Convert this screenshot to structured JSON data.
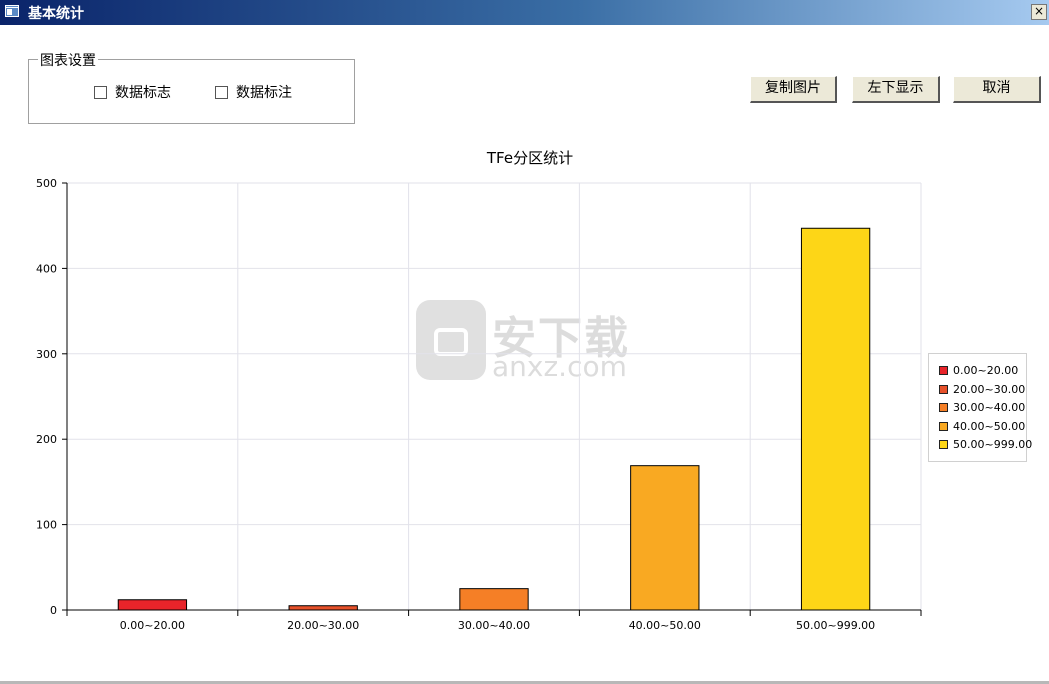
{
  "window": {
    "title": "基本统计",
    "close_label": "×"
  },
  "settings": {
    "group_title": "图表设置",
    "checkboxes": [
      {
        "label": "数据标志",
        "checked": false
      },
      {
        "label": "数据标注",
        "checked": false
      }
    ]
  },
  "buttons": {
    "copy": "复制图片",
    "position": "左下显示",
    "cancel": "取消"
  },
  "watermark": {
    "cn": "安下载",
    "en": "anxz.com"
  },
  "chart_data": {
    "type": "bar",
    "title": "TFe分区统计",
    "xlabel": "",
    "ylabel": "",
    "categories": [
      "0.00~20.00",
      "20.00~30.00",
      "30.00~40.00",
      "40.00~50.00",
      "50.00~999.00"
    ],
    "values": [
      12,
      5,
      25,
      169,
      447
    ],
    "colors": [
      "#e8242a",
      "#e6512a",
      "#f57f26",
      "#f9a922",
      "#fdd617"
    ],
    "ylim": [
      0,
      500
    ],
    "yticks": [
      0,
      100,
      200,
      300,
      400,
      500
    ],
    "grid": true,
    "legend": {
      "position": "right",
      "entries": [
        "0.00~20.00",
        "20.00~30.00",
        "30.00~40.00",
        "40.00~50.00",
        "50.00~999.00"
      ]
    }
  }
}
